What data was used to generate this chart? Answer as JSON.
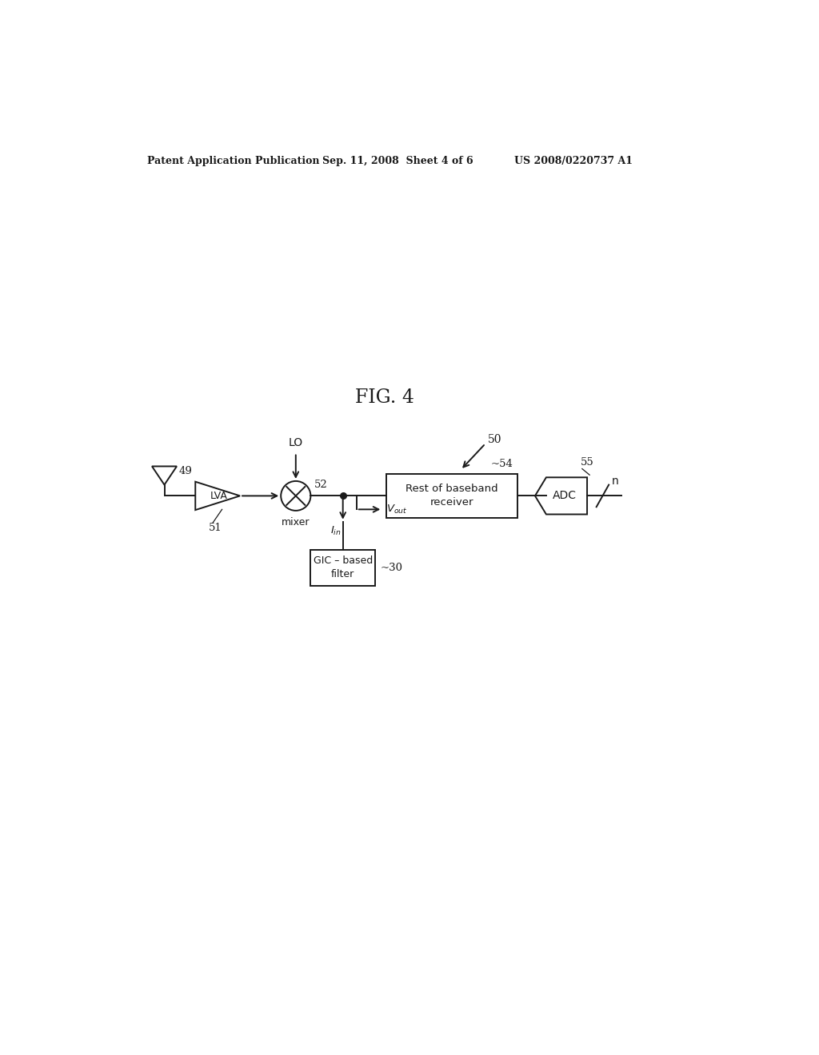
{
  "bg_color": "#ffffff",
  "header_left": "Patent Application Publication",
  "header_mid": "Sep. 11, 2008  Sheet 4 of 6",
  "header_right": "US 2008/0220737 A1",
  "fig_label": "FIG. 4",
  "label_50": "50",
  "label_49": "49",
  "label_51": "51",
  "label_52": "52",
  "label_54": "54",
  "label_55": "55",
  "label_30": "30",
  "label_LO": "LO",
  "label_mixer": "mixer",
  "label_LVA": "LVA",
  "label_Iin": "I_{in}",
  "label_Vout": "V_{out}",
  "label_rest": "Rest of baseband\nreceiver",
  "label_ADC": "ADC",
  "label_GIC": "GIC – based\nfilter",
  "label_n": "n",
  "line_color": "#1a1a1a",
  "text_color": "#1a1a1a"
}
